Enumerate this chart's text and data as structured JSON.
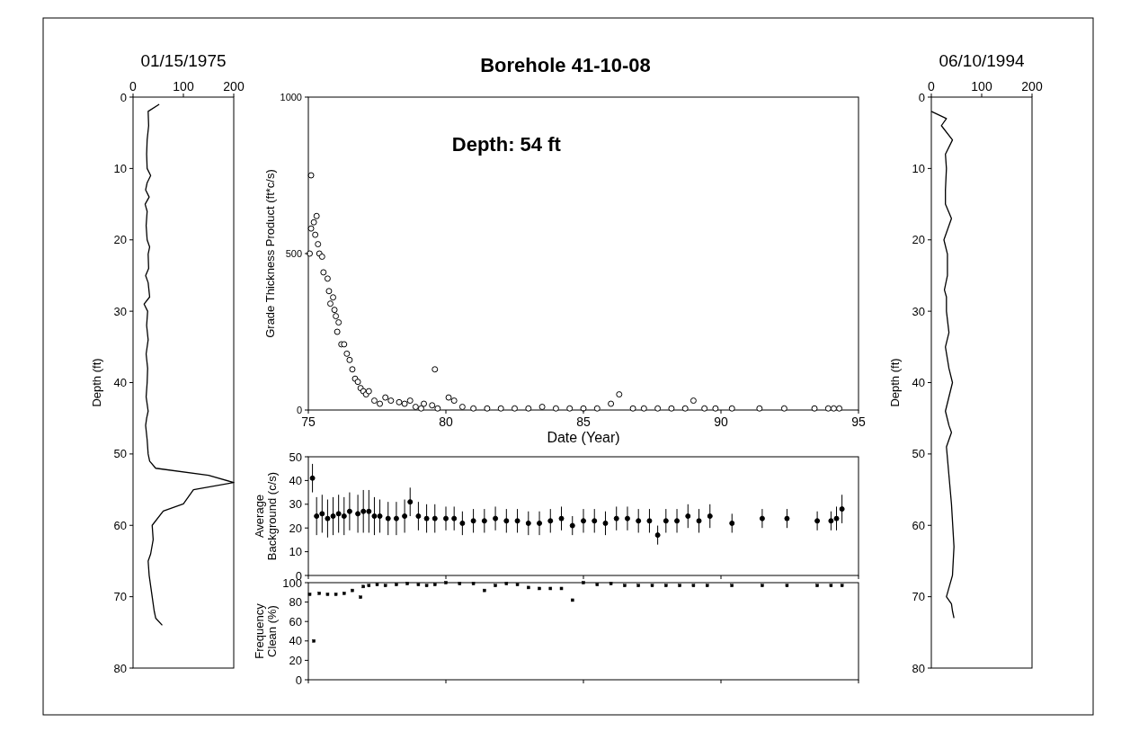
{
  "chart_data": [
    {
      "type": "line",
      "title": "01/15/1975",
      "ylabel": "Depth (ft)",
      "xlim": [
        0,
        200
      ],
      "xticks": [
        0,
        100,
        200
      ],
      "ylim": [
        80,
        0
      ],
      "yticks": [
        0,
        10,
        20,
        30,
        40,
        50,
        60,
        70,
        80
      ],
      "series": [
        {
          "color": "#000000",
          "x": [
            52,
            30,
            31,
            28,
            27,
            28,
            35,
            28,
            25,
            32,
            24,
            28,
            26,
            28,
            33,
            30,
            31,
            25,
            30,
            33,
            22,
            29,
            27,
            30,
            26,
            29,
            28,
            26,
            30,
            27,
            25,
            28,
            30,
            33,
            45,
            150,
            200,
            120,
            100,
            60,
            38,
            40,
            35,
            30,
            32,
            38,
            42,
            45,
            58
          ],
          "values": [
            1,
            2,
            4,
            6,
            8,
            10,
            11,
            12,
            13,
            14,
            15,
            16,
            18,
            20,
            21,
            22,
            24,
            25,
            26,
            28,
            29,
            30,
            32,
            34,
            36,
            38,
            40,
            42,
            44,
            45,
            46,
            48,
            50,
            51,
            52,
            53,
            54,
            55,
            57,
            58,
            60,
            62,
            64,
            65,
            67,
            70,
            72,
            73,
            74
          ]
        }
      ]
    },
    {
      "type": "scatter",
      "title": "Borehole 41-10-08",
      "xlabel": "Date (Year)",
      "ylabel": "Grade Thickness Product (ft*c/s)",
      "annotations": [
        "Depth: 54 ft"
      ],
      "xlim": [
        75,
        95
      ],
      "xticks": [
        75,
        80,
        85,
        90,
        95
      ],
      "ylim": [
        0,
        1000
      ],
      "yticks": [
        0,
        500,
        1000
      ],
      "marker": "circle",
      "series": [
        {
          "color": "#000000",
          "x": [
            75.1,
            75.05,
            75.1,
            75.2,
            75.3,
            75.25,
            75.35,
            75.4,
            75.5,
            75.55,
            75.7,
            75.75,
            75.8,
            75.9,
            75.95,
            76.0,
            76.1,
            76.05,
            76.2,
            76.3,
            76.4,
            76.5,
            76.6,
            76.7,
            76.8,
            76.9,
            77.0,
            77.1,
            77.2,
            77.4,
            77.6,
            77.8,
            78.0,
            78.3,
            78.5,
            78.7,
            78.9,
            79.1,
            79.2,
            79.5,
            79.6,
            79.7,
            80.1,
            80.3,
            80.6,
            81.0,
            81.5,
            82.0,
            82.5,
            83.0,
            83.5,
            84.0,
            84.5,
            85.0,
            85.5,
            86.0,
            86.3,
            86.8,
            87.2,
            87.7,
            88.2,
            88.7,
            89.0,
            89.4,
            89.8,
            90.4,
            91.4,
            92.3,
            93.4,
            93.9,
            94.1,
            94.3
          ],
          "values": [
            750,
            500,
            580,
            600,
            620,
            560,
            530,
            500,
            490,
            440,
            420,
            380,
            340,
            360,
            320,
            300,
            280,
            250,
            210,
            210,
            180,
            160,
            130,
            100,
            90,
            70,
            60,
            50,
            60,
            30,
            20,
            40,
            30,
            25,
            20,
            30,
            10,
            5,
            20,
            15,
            130,
            5,
            40,
            30,
            10,
            5,
            5,
            5,
            5,
            5,
            10,
            5,
            5,
            5,
            5,
            20,
            50,
            5,
            5,
            5,
            5,
            5,
            30,
            5,
            5,
            5,
            5,
            5,
            5,
            5,
            5,
            5
          ]
        }
      ]
    },
    {
      "type": "scatter",
      "ylabel": "Average Background (c/s)",
      "xlim": [
        75,
        95
      ],
      "xticks": [
        75,
        80,
        85,
        90,
        95
      ],
      "ylim": [
        0,
        50
      ],
      "yticks": [
        0,
        10,
        20,
        30,
        40,
        50
      ],
      "tick_labels": "y",
      "marker": "circle",
      "series": [
        {
          "color": "#000000",
          "x": [
            75.15,
            75.3,
            75.5,
            75.7,
            75.9,
            76.1,
            76.3,
            76.5,
            76.8,
            77.0,
            77.2,
            77.4,
            77.6,
            77.9,
            78.2,
            78.5,
            78.7,
            79.0,
            79.3,
            79.6,
            80.0,
            80.3,
            80.6,
            81.0,
            81.4,
            81.8,
            82.2,
            82.6,
            83.0,
            83.4,
            83.8,
            84.2,
            84.6,
            85.0,
            85.4,
            85.8,
            86.2,
            86.6,
            87.0,
            87.4,
            87.7,
            88.0,
            88.4,
            88.8,
            89.2,
            89.6,
            90.4,
            91.5,
            92.4,
            93.5,
            94.0,
            94.2,
            94.4
          ],
          "values": [
            41,
            25,
            26,
            24,
            25,
            26,
            25,
            27,
            26,
            27,
            27,
            25,
            25,
            24,
            24,
            25,
            31,
            25,
            24,
            24,
            24,
            24,
            22,
            23,
            23,
            24,
            23,
            23,
            22,
            22,
            23,
            24,
            21,
            23,
            23,
            22,
            24,
            24,
            23,
            23,
            17,
            23,
            23,
            25,
            23,
            25,
            22,
            24,
            24,
            23,
            23,
            24,
            28
          ],
          "errors": [
            6,
            8,
            8,
            8,
            8,
            8,
            8,
            8,
            8,
            9,
            9,
            8,
            7,
            7,
            7,
            7,
            6,
            6,
            6,
            6,
            5,
            5,
            5,
            5,
            5,
            5,
            5,
            5,
            5,
            5,
            5,
            5,
            4,
            5,
            5,
            5,
            5,
            5,
            5,
            5,
            4,
            5,
            5,
            5,
            5,
            5,
            4,
            4,
            4,
            4,
            4,
            5,
            6
          ]
        }
      ]
    },
    {
      "type": "scatter",
      "ylabel": "Frequency Clean (%)",
      "xlim": [
        75,
        95
      ],
      "xticks": [
        75,
        80,
        85,
        90,
        95
      ],
      "ylim": [
        0,
        100
      ],
      "yticks": [
        0,
        20,
        40,
        60,
        80,
        100
      ],
      "tick_labels": "y",
      "marker": "square",
      "series": [
        {
          "color": "#000000",
          "x": [
            75.05,
            75.2,
            75.4,
            75.7,
            76.0,
            76.3,
            76.6,
            76.9,
            77.0,
            77.2,
            77.5,
            77.8,
            78.2,
            78.6,
            79.0,
            79.3,
            79.6,
            80.0,
            80.5,
            81.0,
            81.4,
            81.8,
            82.2,
            82.6,
            83.0,
            83.4,
            83.8,
            84.2,
            84.6,
            85.0,
            85.5,
            86.0,
            86.5,
            87.0,
            87.5,
            88.0,
            88.5,
            89.0,
            89.5,
            90.4,
            91.5,
            92.4,
            93.5,
            94.0,
            94.4
          ],
          "values": [
            88,
            40,
            89,
            88,
            88,
            89,
            92,
            85,
            96,
            97,
            98,
            97,
            98,
            99,
            98,
            97,
            98,
            100,
            99,
            99,
            92,
            97,
            99,
            98,
            95,
            94,
            94,
            94,
            82,
            100,
            98,
            99,
            97,
            97,
            97,
            97,
            97,
            97,
            97,
            97,
            97,
            97,
            97,
            97,
            97
          ]
        }
      ]
    },
    {
      "type": "line",
      "title": "06/10/1994",
      "ylabel": "Depth (ft)",
      "xlim": [
        0,
        200
      ],
      "xticks": [
        0,
        100,
        200
      ],
      "ylim": [
        80,
        0
      ],
      "yticks": [
        0,
        10,
        20,
        30,
        40,
        50,
        60,
        70,
        80
      ],
      "series": [
        {
          "color": "#000000",
          "x": [
            0,
            30,
            20,
            42,
            28,
            30,
            28,
            28,
            40,
            25,
            32,
            32,
            26,
            30,
            30,
            35,
            28,
            35,
            42,
            28,
            35,
            40,
            30,
            35,
            40,
            45,
            42,
            30,
            40,
            42,
            45
          ],
          "values": [
            2,
            3,
            4,
            6,
            8,
            10,
            13,
            15,
            17,
            20,
            22,
            25,
            27,
            28,
            30,
            33,
            35,
            38,
            40,
            44,
            46,
            47,
            49,
            53,
            57,
            63,
            67,
            70,
            71,
            72,
            73
          ]
        }
      ]
    }
  ]
}
